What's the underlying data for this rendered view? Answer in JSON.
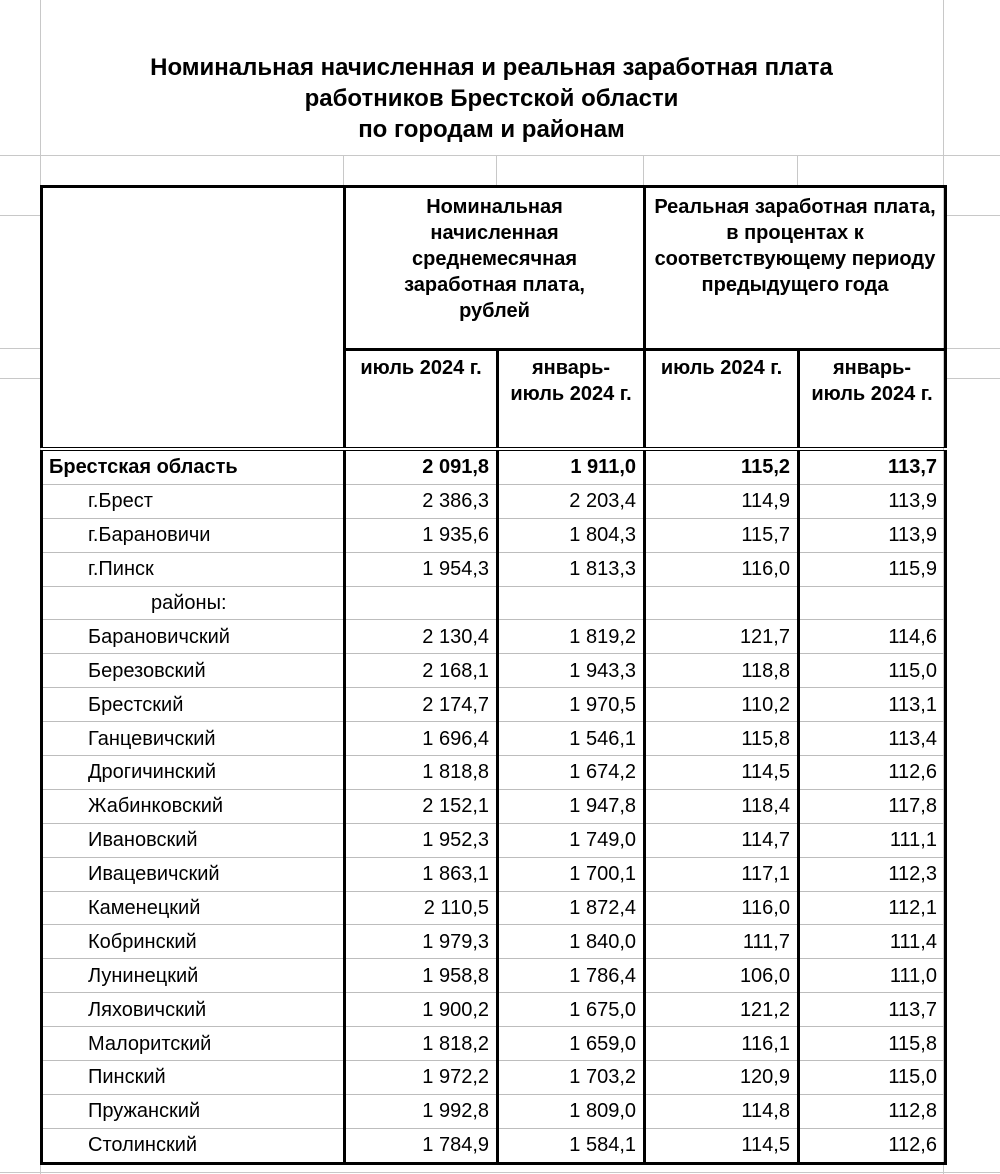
{
  "title": [
    "Номинальная начисленная и реальная заработная плата",
    "работников Брестской области",
    "по городам и районам"
  ],
  "headers": {
    "nominal": "Номинальная начисленная среднемесячная заработная плата, рублей",
    "real": "Реальная заработная плата, в процентах к соответствующему периоду предыдущего года",
    "sub": [
      "июль 2024 г.",
      "январь-июль 2024 г.",
      "июль 2024 г.",
      "январь-июль 2024 г."
    ]
  },
  "rows": [
    {
      "name": "Брестская область",
      "type": "total",
      "values": [
        "2 091,8",
        "1 911,0",
        "115,2",
        "113,7"
      ]
    },
    {
      "name": "г.Брест",
      "values": [
        "2 386,3",
        "2 203,4",
        "114,9",
        "113,9"
      ]
    },
    {
      "name": "г.Барановичи",
      "values": [
        "1 935,6",
        "1 804,3",
        "115,7",
        "113,9"
      ]
    },
    {
      "name": "г.Пинск",
      "values": [
        "1 954,3",
        "1 813,3",
        "116,0",
        "115,9"
      ]
    },
    {
      "name": "районы:",
      "type": "section",
      "values": [
        "",
        "",
        "",
        ""
      ]
    },
    {
      "name": "Барановичский",
      "values": [
        "2 130,4",
        "1 819,2",
        "121,7",
        "114,6"
      ]
    },
    {
      "name": "Березовский",
      "values": [
        "2 168,1",
        "1 943,3",
        "118,8",
        "115,0"
      ]
    },
    {
      "name": "Брестский",
      "values": [
        "2 174,7",
        "1 970,5",
        "110,2",
        "113,1"
      ]
    },
    {
      "name": "Ганцевичский",
      "values": [
        "1 696,4",
        "1 546,1",
        "115,8",
        "113,4"
      ]
    },
    {
      "name": "Дрогичинский",
      "values": [
        "1 818,8",
        "1 674,2",
        "114,5",
        "112,6"
      ]
    },
    {
      "name": "Жабинковский",
      "values": [
        "2 152,1",
        "1 947,8",
        "118,4",
        "117,8"
      ]
    },
    {
      "name": "Ивановский",
      "values": [
        "1 952,3",
        "1 749,0",
        "114,7",
        "111,1"
      ]
    },
    {
      "name": "Ивацевичский",
      "values": [
        "1 863,1",
        "1 700,1",
        "117,1",
        "112,3"
      ]
    },
    {
      "name": "Каменецкий",
      "values": [
        "2 110,5",
        "1 872,4",
        "116,0",
        "112,1"
      ]
    },
    {
      "name": "Кобринский",
      "values": [
        "1 979,3",
        "1 840,0",
        "111,7",
        "111,4"
      ]
    },
    {
      "name": "Лунинецкий",
      "values": [
        "1 958,8",
        "1 786,4",
        "106,0",
        "111,0"
      ]
    },
    {
      "name": "Ляховичский",
      "values": [
        "1 900,2",
        "1 675,0",
        "121,2",
        "113,7"
      ]
    },
    {
      "name": "Малоритский",
      "values": [
        "1 818,2",
        "1 659,0",
        "116,1",
        "115,8"
      ]
    },
    {
      "name": "Пинский",
      "values": [
        "1 972,2",
        "1 703,2",
        "120,9",
        "115,0"
      ]
    },
    {
      "name": "Пружанский",
      "values": [
        "1 992,8",
        "1 809,0",
        "114,8",
        "112,8"
      ]
    },
    {
      "name": "Столинский",
      "values": [
        "1 784,9",
        "1 584,1",
        "114,5",
        "112,6"
      ]
    }
  ]
}
